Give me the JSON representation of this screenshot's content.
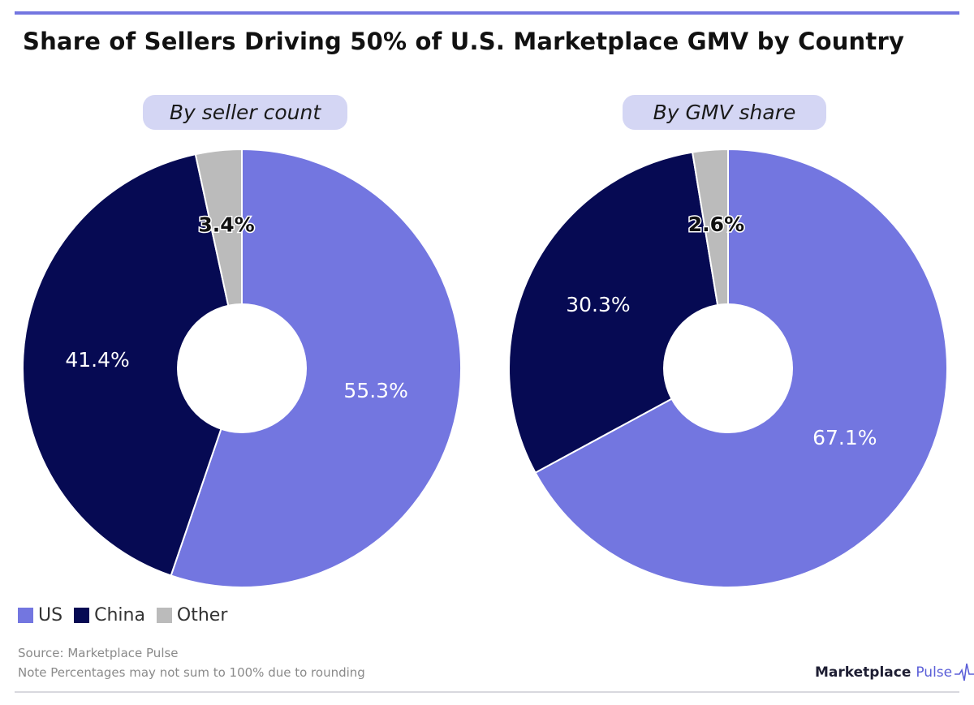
{
  "title": "Share of Sellers Driving 50% of U.S. Marketplace GMV by Country",
  "colors": {
    "US": "#7376e0",
    "China": "#060a53",
    "Other": "#bbbbbb",
    "accent": "#7376e0"
  },
  "legend": [
    {
      "label": "US",
      "color": "#7376e0"
    },
    {
      "label": "China",
      "color": "#060a53"
    },
    {
      "label": "Other",
      "color": "#bbbbbb"
    }
  ],
  "footer": {
    "source": "Source: Marketplace Pulse",
    "note": "Note Percentages may not sum to 100% due to rounding"
  },
  "brand": {
    "name": "Marketplace",
    "accent_word": "Pulse",
    "icon": "pulse-line-icon"
  },
  "chart_data": [
    {
      "type": "pie",
      "title": "By seller count",
      "slices": [
        {
          "name": "US",
          "value": 55.3,
          "label": "55.3%"
        },
        {
          "name": "China",
          "value": 41.4,
          "label": "41.4%"
        },
        {
          "name": "Other",
          "value": 3.4,
          "label": "3.4%"
        }
      ]
    },
    {
      "type": "pie",
      "title": "By GMV share",
      "slices": [
        {
          "name": "US",
          "value": 67.1,
          "label": "67.1%"
        },
        {
          "name": "China",
          "value": 30.3,
          "label": "30.3%"
        },
        {
          "name": "Other",
          "value": 2.6,
          "label": "2.6%"
        }
      ]
    }
  ]
}
